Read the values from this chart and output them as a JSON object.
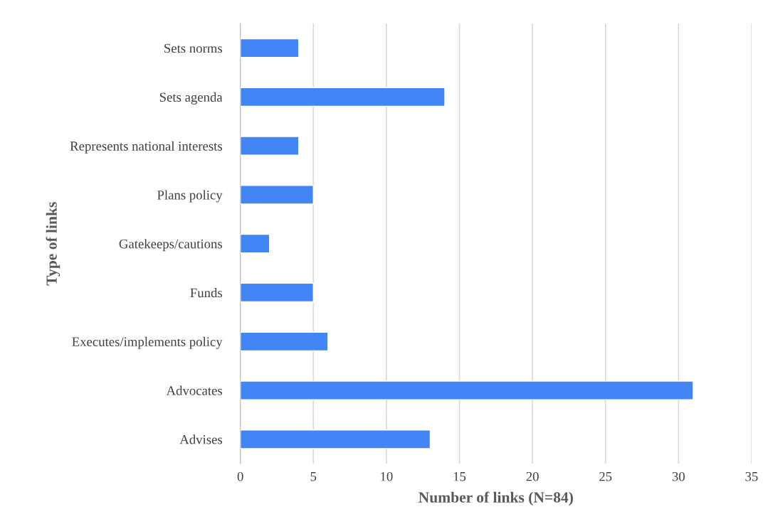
{
  "chart_data": {
    "type": "bar",
    "orientation": "horizontal",
    "xlabel": "Number of links (N=84)",
    "ylabel": "Type of links",
    "categories": [
      "Sets norms",
      "Sets agenda",
      "Represents national interests",
      "Plans policy",
      "Gatekeeps/cautions",
      "Funds",
      "Executes/implements policy",
      "Advocates",
      "Advises"
    ],
    "values": [
      4,
      14,
      4,
      5,
      2,
      5,
      6,
      31,
      13
    ],
    "color": "#4285f4",
    "xlim": [
      0,
      35
    ],
    "xticks": [
      0,
      5,
      10,
      15,
      20,
      25,
      30,
      35
    ],
    "grid": "x",
    "legend": false
  }
}
